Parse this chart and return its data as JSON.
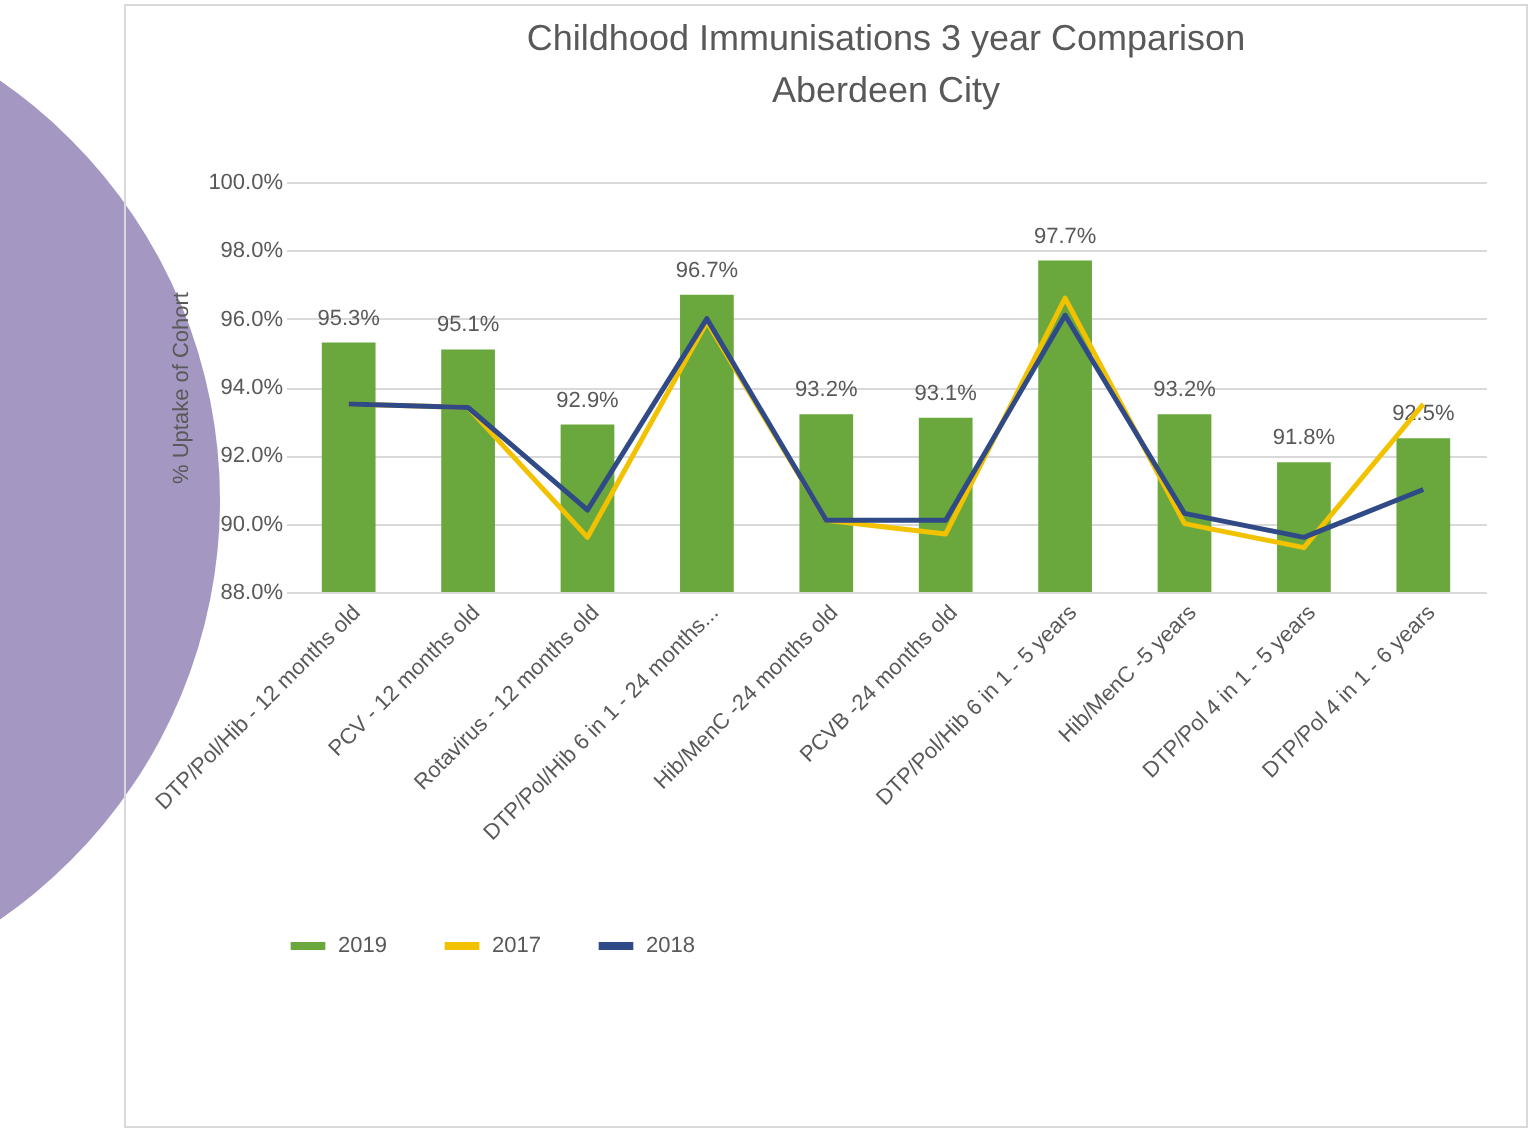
{
  "chart_data": {
    "type": "bar",
    "title": "Childhood Immunisations 3 year Comparison\nAberdeen City",
    "ylabel": "% Uptake of Cohort",
    "categories": [
      "DTP/Pol/Hib - 12 months old",
      "PCV - 12 months old",
      "Rotavirus - 12 months old",
      "DTP/Pol/Hib 6 in 1 - 24 months...",
      "Hib/MenC -24 months old",
      "PCVB -24 months old",
      "DTP/Pol/Hib 6 in 1 - 5 years",
      "Hib/MenC -5 years",
      "DTP/Pol 4 in 1 - 5 years",
      "DTP/Pol 4 in 1 - 6 years"
    ],
    "series": [
      {
        "name": "2019",
        "color": "#6aa83e",
        "values": [
          95.3,
          95.1,
          92.9,
          96.7,
          93.2,
          93.1,
          97.7,
          93.2,
          91.8,
          92.5
        ],
        "value_labels": [
          "95.3%",
          "95.1%",
          "92.9%",
          "96.7%",
          "93.2%",
          "93.1%",
          "97.7%",
          "93.2%",
          "91.8%",
          "92.5%"
        ]
      },
      {
        "name": "2017",
        "type": "line",
        "color": "#f2c200",
        "values": [
          93.5,
          93.4,
          89.6,
          95.9,
          90.1,
          89.7,
          96.6,
          90.0,
          89.3,
          93.5
        ]
      },
      {
        "name": "2018",
        "type": "line",
        "color": "#2f4a86",
        "values": [
          93.5,
          93.4,
          90.4,
          96.0,
          90.1,
          90.1,
          96.1,
          90.3,
          89.6,
          91.0
        ]
      }
    ],
    "ylim": [
      88,
      100
    ],
    "yticks": [
      {
        "value": 88,
        "label": "88.0%"
      },
      {
        "value": 90,
        "label": "90.0%"
      },
      {
        "value": 92,
        "label": "92.0%"
      },
      {
        "value": 94,
        "label": "94.0%"
      },
      {
        "value": 96,
        "label": "96.0%"
      },
      {
        "value": 98,
        "label": "98.0%"
      },
      {
        "value": 100,
        "label": "100.0%"
      }
    ],
    "grid": "y",
    "legend": "bottom",
    "marker": "none",
    "line_style": "solid"
  }
}
